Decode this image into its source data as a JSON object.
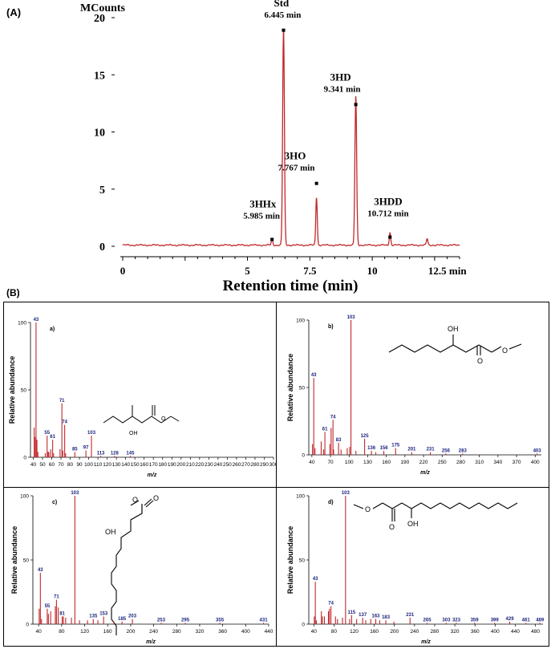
{
  "figure": {
    "label_a": "(A)",
    "label_b": "(B)"
  },
  "chart_data": [
    {
      "id": "chromatogram",
      "type": "line",
      "ylabel": "MCounts",
      "xlabel": "Retention time (min)",
      "xlim": [
        0,
        13.5
      ],
      "ylim": [
        0,
        20
      ],
      "x_ticks": [
        0,
        2.5,
        5,
        7.5,
        10,
        12.5
      ],
      "x_tick_labels": [
        "0",
        "5",
        "7.5",
        "10",
        "12.5  min"
      ],
      "x_tick_label_positions": [
        0,
        5,
        7.5,
        10,
        12.5
      ],
      "y_ticks": [
        0,
        5,
        10,
        15,
        20
      ],
      "y_tick_labels": [
        "0",
        "5",
        "10",
        "15",
        "20"
      ],
      "line_color": "#c0282b",
      "peaks": [
        {
          "name": "3HHx",
          "time_label": "5.985 min",
          "x": 5.985,
          "height": 0.5
        },
        {
          "name": "Std",
          "time_label": "6.445 min",
          "x": 6.445,
          "height": 18.8
        },
        {
          "name": "3HO",
          "time_label": "7.767 min",
          "x": 7.767,
          "height": 4.2
        },
        {
          "name": "3HD",
          "time_label": "9.341 min",
          "x": 9.341,
          "height": 13.0
        },
        {
          "name": "3HDD",
          "time_label": "10.712 min",
          "x": 10.712,
          "height": 1.1
        },
        {
          "name": "",
          "time_label": "",
          "x": 12.2,
          "height": 0.55
        }
      ],
      "markers": [
        {
          "x": 5.985,
          "y": 0.6
        },
        {
          "x": 6.445,
          "y": 18.9
        },
        {
          "x": 7.767,
          "y": 5.5
        },
        {
          "x": 9.341,
          "y": 12.4
        },
        {
          "x": 10.712,
          "y": 0.8
        }
      ]
    },
    {
      "id": "ms-a",
      "type": "bar",
      "panel_label": "a)",
      "xlabel": "m/z",
      "ylabel": "Relative abundance",
      "xlim": [
        37,
        300
      ],
      "ylim": [
        0,
        100
      ],
      "x_ticks": [
        40,
        50,
        60,
        70,
        80,
        90,
        100,
        110,
        120,
        130,
        140,
        150,
        160,
        170,
        180,
        190,
        200,
        210,
        220,
        230,
        240,
        250,
        260,
        270,
        280,
        290,
        300
      ],
      "y_ticks": [
        0,
        50,
        100
      ],
      "peaks": [
        [
          41,
          22
        ],
        [
          42,
          15
        ],
        [
          43,
          100
        ],
        [
          44,
          13
        ],
        [
          45,
          4
        ],
        [
          53,
          3
        ],
        [
          55,
          16
        ],
        [
          56,
          4
        ],
        [
          57,
          4
        ],
        [
          59,
          6
        ],
        [
          61,
          13
        ],
        [
          62,
          3
        ],
        [
          69,
          6
        ],
        [
          71,
          40
        ],
        [
          72,
          5
        ],
        [
          74,
          24
        ],
        [
          75,
          3
        ],
        [
          85,
          4
        ],
        [
          97,
          5
        ],
        [
          103,
          16
        ],
        [
          113,
          1
        ],
        [
          128,
          1
        ],
        [
          145,
          1
        ]
      ],
      "peak_labels": [
        [
          43,
          "43"
        ],
        [
          55,
          "55"
        ],
        [
          61,
          "61"
        ],
        [
          71,
          "71"
        ],
        [
          74,
          "74"
        ],
        [
          85,
          "85"
        ],
        [
          97,
          "97"
        ],
        [
          103,
          "103"
        ],
        [
          113,
          "113"
        ],
        [
          128,
          "128"
        ],
        [
          145,
          "145"
        ]
      ]
    },
    {
      "id": "ms-b",
      "type": "bar",
      "panel_label": "b)",
      "xlabel": "m/z",
      "ylabel": "Relative abundance",
      "xlim": [
        35,
        410
      ],
      "ylim": [
        0,
        100
      ],
      "x_ticks": [
        40,
        70,
        100,
        130,
        160,
        190,
        220,
        250,
        280,
        310,
        340,
        370,
        400
      ],
      "y_ticks": [
        0,
        50,
        100
      ],
      "peaks": [
        [
          41,
          8
        ],
        [
          43,
          57
        ],
        [
          45,
          5
        ],
        [
          55,
          10
        ],
        [
          59,
          4
        ],
        [
          61,
          17
        ],
        [
          69,
          8
        ],
        [
          71,
          20
        ],
        [
          74,
          26
        ],
        [
          75,
          4
        ],
        [
          83,
          9
        ],
        [
          87,
          4
        ],
        [
          97,
          5
        ],
        [
          101,
          6
        ],
        [
          103,
          100
        ],
        [
          111,
          3
        ],
        [
          125,
          12
        ],
        [
          136,
          3
        ],
        [
          143,
          2
        ],
        [
          156,
          3
        ],
        [
          175,
          5
        ],
        [
          201,
          2
        ],
        [
          231,
          2
        ],
        [
          256,
          1
        ],
        [
          283,
          1
        ],
        [
          403,
          1
        ]
      ],
      "peak_labels": [
        [
          43,
          "43"
        ],
        [
          61,
          "61"
        ],
        [
          74,
          "74"
        ],
        [
          83,
          "83"
        ],
        [
          103,
          "103"
        ],
        [
          125,
          "125"
        ],
        [
          136,
          "136"
        ],
        [
          156,
          "156"
        ],
        [
          175,
          "175"
        ],
        [
          201,
          "201"
        ],
        [
          231,
          "231"
        ],
        [
          256,
          "256"
        ],
        [
          283,
          "283"
        ],
        [
          403,
          "403"
        ]
      ]
    },
    {
      "id": "ms-c",
      "type": "bar",
      "panel_label": "c)",
      "xlabel": "m/z",
      "ylabel": "Relative abundance",
      "xlim": [
        30,
        440
      ],
      "ylim": [
        0,
        100
      ],
      "x_ticks": [
        40,
        80,
        120,
        160,
        200,
        240,
        280,
        320,
        360,
        400,
        440
      ],
      "y_ticks": [
        0,
        50,
        100
      ],
      "peaks": [
        [
          41,
          12
        ],
        [
          43,
          40
        ],
        [
          45,
          4
        ],
        [
          55,
          12
        ],
        [
          57,
          8
        ],
        [
          61,
          10
        ],
        [
          69,
          14
        ],
        [
          71,
          19
        ],
        [
          74,
          13
        ],
        [
          81,
          6
        ],
        [
          83,
          6
        ],
        [
          87,
          5
        ],
        [
          97,
          5
        ],
        [
          103,
          100
        ],
        [
          111,
          3
        ],
        [
          125,
          3
        ],
        [
          135,
          4
        ],
        [
          143,
          3
        ],
        [
          153,
          6
        ],
        [
          171,
          2
        ],
        [
          185,
          2
        ],
        [
          203,
          4
        ],
        [
          253,
          1
        ],
        [
          295,
          1
        ],
        [
          355,
          1
        ],
        [
          431,
          1
        ]
      ],
      "peak_labels": [
        [
          43,
          "43"
        ],
        [
          55,
          "55"
        ],
        [
          71,
          "71"
        ],
        [
          81,
          "81"
        ],
        [
          103,
          "103"
        ],
        [
          135,
          "135"
        ],
        [
          153,
          "153"
        ],
        [
          185,
          "185"
        ],
        [
          203,
          "203"
        ],
        [
          253,
          "253"
        ],
        [
          295,
          "295"
        ],
        [
          355,
          "355"
        ],
        [
          431,
          "431"
        ]
      ]
    },
    {
      "id": "ms-d",
      "type": "bar",
      "panel_label": "d)",
      "xlabel": "m/z",
      "ylabel": "Relative abundance",
      "xlim": [
        30,
        495
      ],
      "ylim": [
        0,
        100
      ],
      "x_ticks": [
        40,
        80,
        120,
        160,
        200,
        240,
        280,
        320,
        360,
        400,
        440,
        480
      ],
      "y_ticks": [
        0,
        50,
        100
      ],
      "peaks": [
        [
          41,
          6
        ],
        [
          43,
          33
        ],
        [
          45,
          3
        ],
        [
          55,
          10
        ],
        [
          57,
          6
        ],
        [
          61,
          6
        ],
        [
          69,
          10
        ],
        [
          71,
          12
        ],
        [
          74,
          14
        ],
        [
          83,
          6
        ],
        [
          87,
          4
        ],
        [
          97,
          5
        ],
        [
          103,
          100
        ],
        [
          111,
          4
        ],
        [
          115,
          7
        ],
        [
          125,
          4
        ],
        [
          137,
          5
        ],
        [
          143,
          3
        ],
        [
          153,
          4
        ],
        [
          163,
          4
        ],
        [
          171,
          3
        ],
        [
          183,
          3
        ],
        [
          199,
          2
        ],
        [
          231,
          5
        ],
        [
          265,
          1
        ],
        [
          303,
          1
        ],
        [
          323,
          1
        ],
        [
          359,
          1
        ],
        [
          399,
          1
        ],
        [
          429,
          2
        ],
        [
          461,
          1
        ],
        [
          489,
          1
        ]
      ],
      "peak_labels": [
        [
          43,
          "43"
        ],
        [
          74,
          "74"
        ],
        [
          103,
          "103"
        ],
        [
          115,
          "115"
        ],
        [
          137,
          "137"
        ],
        [
          163,
          "163"
        ],
        [
          183,
          "183"
        ],
        [
          231,
          "231"
        ],
        [
          265,
          "265"
        ],
        [
          303,
          "303"
        ],
        [
          323,
          "323"
        ],
        [
          359,
          "359"
        ],
        [
          399,
          "399"
        ],
        [
          429,
          "429"
        ],
        [
          461,
          "461"
        ],
        [
          489,
          "489"
        ]
      ]
    }
  ],
  "structures": {
    "oh": "OH",
    "o": "O"
  },
  "colors": {
    "peak": "#c0282b",
    "label": "#1a237e"
  }
}
